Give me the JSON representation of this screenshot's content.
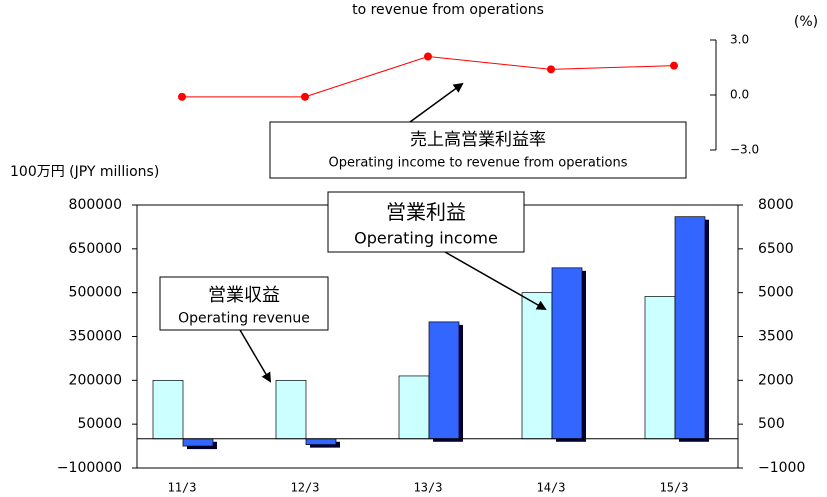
{
  "chart_data": [
    {
      "type": "line",
      "title": "to revenue from operations",
      "y_unit": "(%)",
      "values": [
        -0.1,
        -0.1,
        2.1,
        1.4,
        1.6
      ],
      "color": "#ff0000",
      "ylim": [
        -3,
        3
      ],
      "yticks": [
        {
          "value": 3,
          "label": "3.0"
        },
        {
          "value": 0,
          "label": "0.0"
        },
        {
          "value": -3,
          "label": "−3.0"
        }
      ],
      "annotation": [
        "売上高営業利益率",
        "Operating income to revenue from operations"
      ]
    },
    {
      "type": "bar",
      "ylabel": "100万円 (JPY millions)",
      "categories": [
        "11/3",
        "12/3",
        "13/3",
        "14/3",
        "15/3"
      ],
      "series": [
        {
          "color": "#ccffff",
          "values": [
            200000,
            200000,
            215000,
            500000,
            487000
          ]
        },
        {
          "color": "#3366ff",
          "axis": "y2",
          "values": [
            -250,
            -200,
            4000,
            5850,
            7600
          ]
        }
      ],
      "ylim": [
        -100000,
        800000
      ],
      "yticks": [
        {
          "value": -100000,
          "label": "−100000"
        },
        50000,
        200000,
        350000,
        500000,
        650000,
        800000
      ],
      "y2lim": [
        -1000,
        8000
      ],
      "y2ticks": [
        {
          "value": -1000,
          "label": "−1000"
        },
        500,
        2000,
        3500,
        5000,
        6500,
        8000
      ],
      "annotations": [
        [
          "営業収益",
          "Operating revenue"
        ],
        [
          "営業利益",
          "Operating income"
        ]
      ]
    }
  ]
}
